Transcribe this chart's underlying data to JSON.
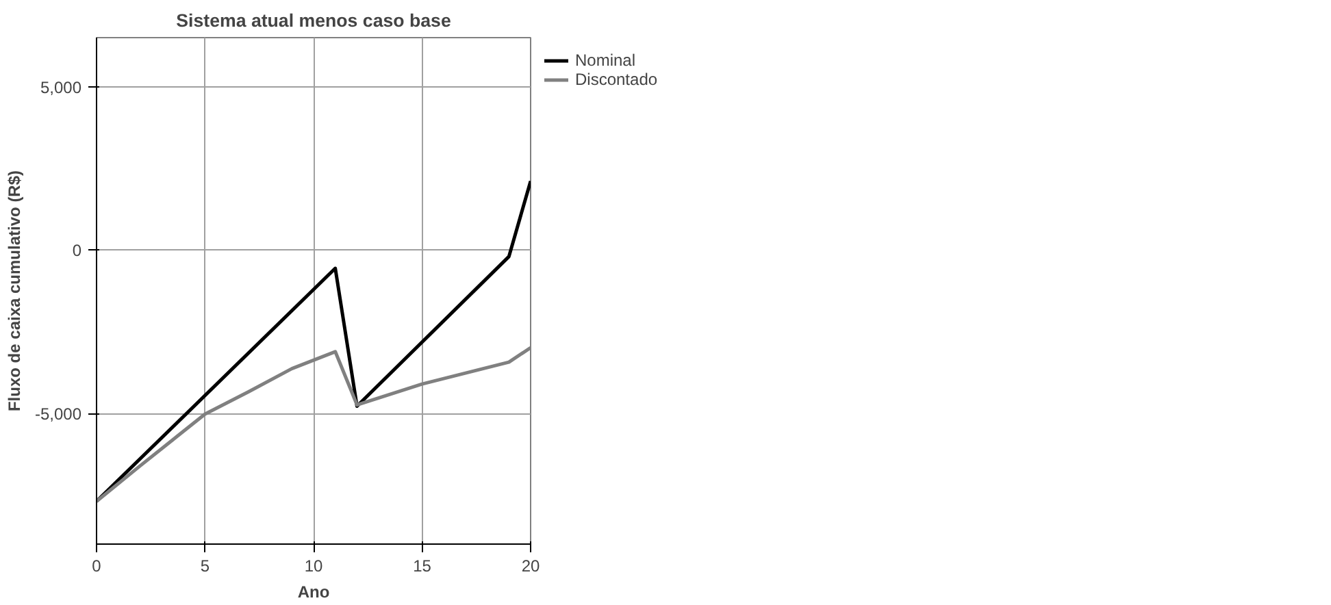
{
  "chart_data": {
    "type": "line",
    "title": "Sistema atual menos caso base",
    "xlabel": "Ano",
    "ylabel": "Fluxo de caixa cumulativo (R$)",
    "xlim": [
      0,
      20
    ],
    "xticks": [
      0,
      5,
      10,
      15,
      20
    ],
    "ylim": [
      -9000,
      6500
    ],
    "yticks": [
      {
        "value": -5000,
        "label": "-5,000"
      },
      0,
      {
        "value": 5000,
        "label": "5,000"
      }
    ],
    "grid": true,
    "legend": "top right",
    "line_style": "solid",
    "marker": "none",
    "series": [
      {
        "name": "Nominal",
        "color": "#000000",
        "x": [
          0,
          11,
          12,
          19,
          20
        ],
        "values": [
          -7690,
          -560,
          -4780,
          -200,
          2110
        ]
      },
      {
        "name": "Discontado",
        "color": "#808080",
        "x": [
          0,
          2,
          5,
          7,
          9,
          11,
          12,
          15,
          19,
          20
        ],
        "values": [
          -7690,
          -6610,
          -5020,
          -4340,
          -3630,
          -3110,
          -4740,
          -4100,
          -3430,
          -2990
        ]
      }
    ]
  }
}
